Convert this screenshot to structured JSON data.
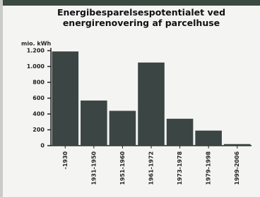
{
  "chart_data": {
    "type": "bar",
    "title": "Energibesparelsespotentialet ved energirenovering af parcelhuse",
    "y_label": "mio. kWh",
    "categories": [
      "-1930",
      "1931-1950",
      "1951-1960",
      "1961-1972",
      "1973-1978",
      "1979-1998",
      "1999-2006"
    ],
    "values": [
      1190,
      570,
      440,
      1050,
      340,
      190,
      20
    ],
    "color": "#3b4644",
    "ylim": [
      0,
      1200
    ],
    "yticks": [
      0,
      200,
      400,
      600,
      800,
      {
        "value": 1000,
        "label": "1.000"
      },
      {
        "value": 1200,
        "label": "1.200"
      }
    ],
    "grid": false
  }
}
